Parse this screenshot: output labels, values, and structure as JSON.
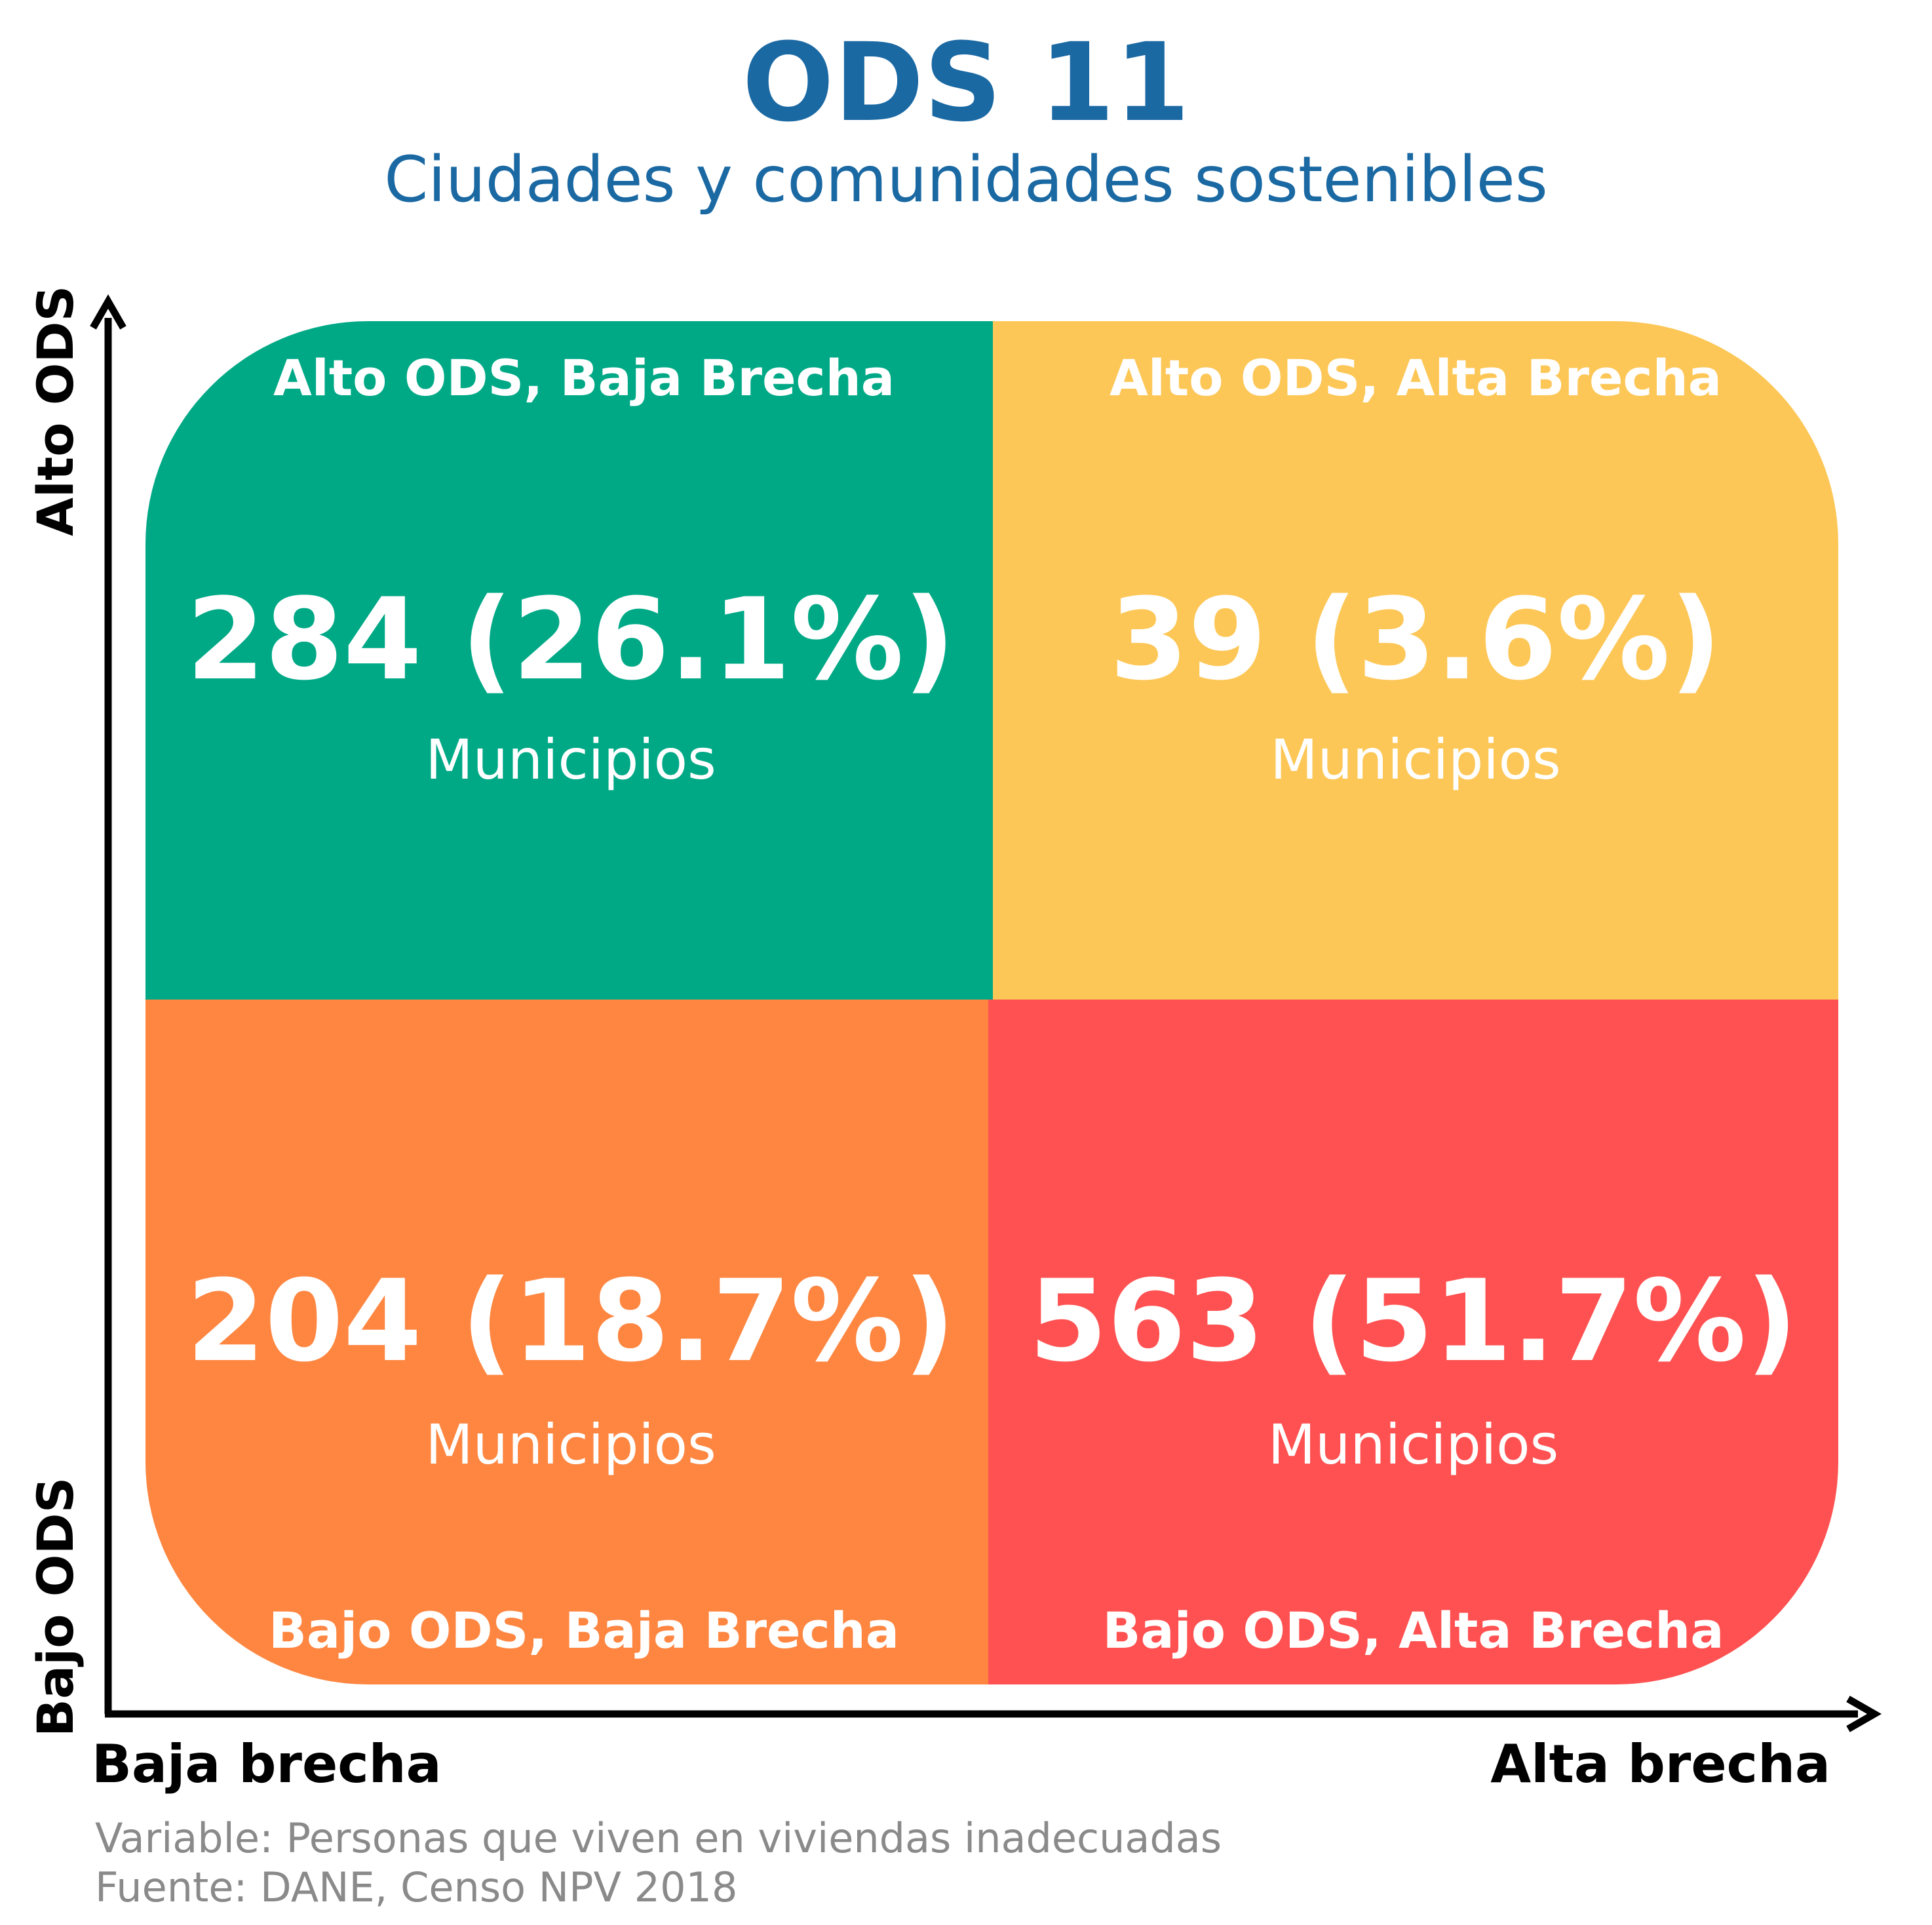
{
  "title": "ODS 11",
  "subtitle": "Ciudades y comunidades sostenibles",
  "axes": {
    "y_high": "Alto ODS",
    "y_low": "Bajo ODS",
    "x_low": "Baja brecha",
    "x_high": "Alta brecha"
  },
  "quadrants": {
    "top_left": {
      "label": "Alto ODS, Baja Brecha",
      "count": "284 (26.1%)",
      "unit": "Municipios",
      "color": "#00a986"
    },
    "top_right": {
      "label": "Alto ODS, Alta Brecha",
      "count": "39 (3.6%)",
      "unit": "Municipios",
      "color": "#fdc757"
    },
    "bottom_left": {
      "label": "Bajo ODS, Baja Brecha",
      "count": "204 (18.7%)",
      "unit": "Municipios",
      "color": "#fe8641"
    },
    "bottom_right": {
      "label": "Bajo ODS, Alta Brecha",
      "count": "563 (51.7%)",
      "unit": "Municipios",
      "color": "#ff5151"
    }
  },
  "notes": {
    "variable": "Variable: Personas que viven en viviendas inadecuadas",
    "source": "Fuente: DANE, Censo NPV 2018"
  }
}
